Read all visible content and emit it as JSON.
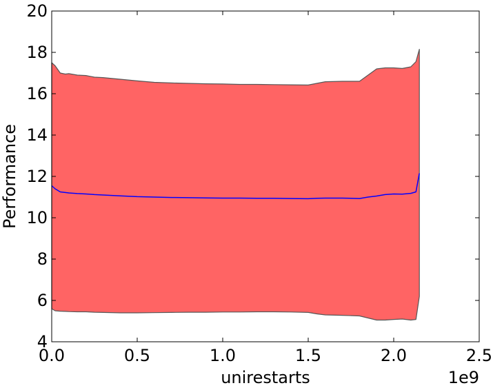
{
  "chart_data": {
    "type": "area",
    "title": "",
    "xlabel": "unirestarts",
    "ylabel": "Performance",
    "x_offset_label": "1e9",
    "xlim": [
      0,
      2.5
    ],
    "ylim": [
      4,
      20
    ],
    "x_ticks": [
      0.0,
      0.5,
      1.0,
      1.5,
      2.0,
      2.5
    ],
    "x_tick_labels": [
      "0.0",
      "0.5",
      "1.0",
      "1.5",
      "2.0",
      "2.5"
    ],
    "y_ticks": [
      4,
      6,
      8,
      10,
      12,
      14,
      16,
      18,
      20
    ],
    "y_tick_labels": [
      "4",
      "6",
      "8",
      "10",
      "12",
      "14",
      "16",
      "18",
      "20"
    ],
    "grid": false,
    "legend": "none",
    "x_unit_multiplier": 1000000000,
    "series": [
      {
        "kind": "band",
        "color": "#ff6464",
        "edge_color": "#555555",
        "x": [
          0.0,
          0.02,
          0.05,
          0.08,
          0.1,
          0.15,
          0.2,
          0.25,
          0.3,
          0.4,
          0.5,
          0.6,
          0.7,
          0.8,
          0.9,
          1.0,
          1.1,
          1.2,
          1.3,
          1.4,
          1.5,
          1.55,
          1.6,
          1.7,
          1.8,
          1.85,
          1.9,
          1.95,
          2.0,
          2.05,
          2.1,
          2.13,
          2.15
        ],
        "upper": [
          17.5,
          17.35,
          17.0,
          16.95,
          16.97,
          16.9,
          16.88,
          16.8,
          16.78,
          16.7,
          16.62,
          16.55,
          16.52,
          16.5,
          16.48,
          16.47,
          16.45,
          16.45,
          16.44,
          16.43,
          16.42,
          16.5,
          16.58,
          16.6,
          16.6,
          16.9,
          17.2,
          17.25,
          17.25,
          17.22,
          17.3,
          17.55,
          18.15
        ],
        "lower": [
          5.6,
          5.5,
          5.48,
          5.47,
          5.46,
          5.45,
          5.45,
          5.43,
          5.42,
          5.4,
          5.4,
          5.41,
          5.42,
          5.43,
          5.43,
          5.44,
          5.44,
          5.45,
          5.45,
          5.44,
          5.42,
          5.35,
          5.3,
          5.28,
          5.25,
          5.15,
          5.05,
          5.05,
          5.08,
          5.1,
          5.05,
          5.08,
          6.2
        ]
      },
      {
        "kind": "line",
        "color": "#0000ff",
        "x": [
          0.0,
          0.02,
          0.05,
          0.08,
          0.1,
          0.15,
          0.2,
          0.25,
          0.3,
          0.4,
          0.5,
          0.6,
          0.7,
          0.8,
          0.9,
          1.0,
          1.1,
          1.2,
          1.3,
          1.4,
          1.5,
          1.55,
          1.6,
          1.7,
          1.8,
          1.85,
          1.9,
          1.95,
          2.0,
          2.05,
          2.1,
          2.13,
          2.15
        ],
        "y": [
          11.55,
          11.4,
          11.25,
          11.22,
          11.2,
          11.17,
          11.15,
          11.12,
          11.1,
          11.06,
          11.02,
          11.0,
          10.98,
          10.97,
          10.96,
          10.95,
          10.95,
          10.94,
          10.94,
          10.93,
          10.92,
          10.94,
          10.95,
          10.95,
          10.93,
          11.0,
          11.05,
          11.12,
          11.15,
          11.14,
          11.18,
          11.25,
          12.15
        ]
      }
    ]
  }
}
